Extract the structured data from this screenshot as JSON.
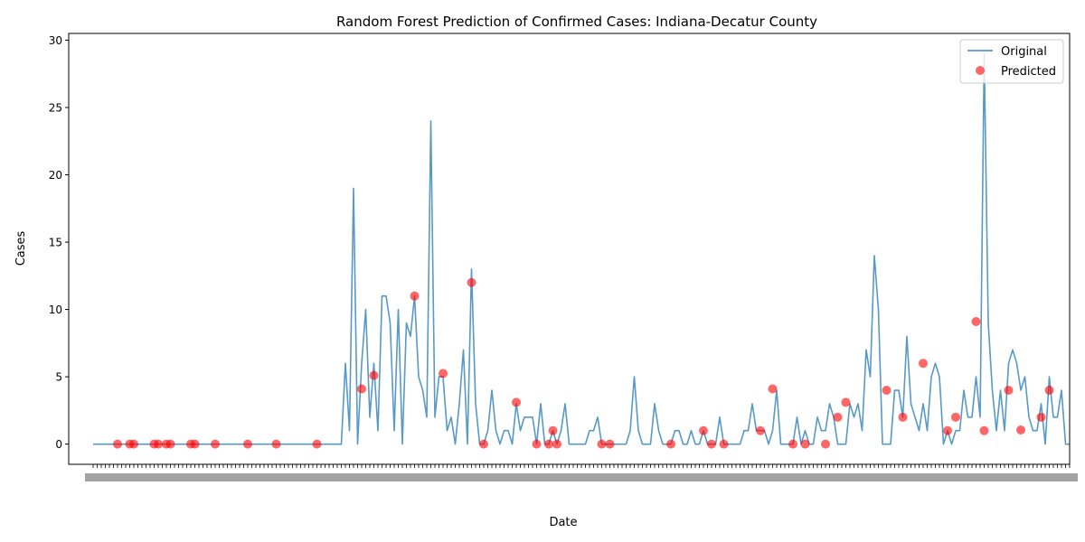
{
  "chart_data": {
    "type": "line",
    "title": "Random Forest Prediction of Confirmed Cases: Indiana-Decatur County",
    "xlabel": "Date",
    "ylabel": "Cases",
    "ylim": [
      -1.5,
      30.5
    ],
    "yticks": [
      0,
      5,
      10,
      15,
      20,
      25,
      30
    ],
    "x_tick_label_note": "dense overlapping date labels (unreadable)",
    "x_range": [
      -6,
      240
    ],
    "grid": false,
    "legend_position": "top-right",
    "series": [
      {
        "name": "Original",
        "color": "#1f77b4",
        "values": [
          0,
          0,
          0,
          0,
          0,
          0,
          0,
          0,
          0,
          0,
          0,
          0,
          0,
          0,
          0,
          0,
          0,
          0,
          0,
          0,
          0,
          0,
          0,
          0,
          0,
          0,
          0,
          0,
          0,
          0,
          0,
          0,
          0,
          0,
          0,
          0,
          0,
          0,
          0,
          0,
          0,
          0,
          0,
          0,
          0,
          0,
          0,
          0,
          0,
          0,
          0,
          0,
          0,
          0,
          0,
          0,
          0,
          0,
          0,
          0,
          0,
          0,
          6,
          1,
          19,
          0,
          6,
          10,
          2,
          6,
          1,
          11,
          11,
          9,
          1,
          10,
          0,
          9,
          8,
          11,
          5,
          4,
          2,
          24,
          2,
          5,
          5,
          1,
          2,
          0,
          3,
          7,
          0,
          13,
          3,
          0,
          0,
          1,
          4,
          1,
          0,
          1,
          1,
          0,
          3,
          1,
          2,
          2,
          2,
          0,
          3,
          0,
          0,
          1,
          0,
          1,
          3,
          0,
          0,
          0,
          0,
          0,
          1,
          1,
          2,
          0,
          0,
          0,
          0,
          0,
          0,
          0,
          1,
          5,
          1,
          0,
          0,
          0,
          3,
          1,
          0,
          0,
          0,
          1,
          1,
          0,
          0,
          1,
          0,
          0,
          1,
          0,
          0,
          0,
          2,
          0,
          0,
          0,
          0,
          0,
          1,
          1,
          3,
          1,
          1,
          1,
          0,
          1,
          4,
          0,
          0,
          0,
          0,
          2,
          0,
          1,
          0,
          0,
          2,
          1,
          1,
          3,
          2,
          0,
          0,
          0,
          3,
          2,
          3,
          1,
          7,
          5,
          14,
          10,
          0,
          0,
          0,
          4,
          4,
          2,
          8,
          3,
          2,
          1,
          3,
          1,
          5,
          6,
          5,
          0,
          1,
          0,
          1,
          1,
          4,
          2,
          2,
          5,
          2,
          29,
          9,
          4,
          1,
          4,
          1,
          6,
          7,
          6,
          4,
          5,
          2,
          1,
          1,
          3,
          0,
          5,
          2,
          2,
          4,
          0,
          0
        ]
      },
      {
        "name": "Predicted",
        "color": "#ff0000",
        "points": [
          {
            "x": 6,
            "y": 0
          },
          {
            "x": 9,
            "y": 0
          },
          {
            "x": 10,
            "y": 0
          },
          {
            "x": 15,
            "y": 0
          },
          {
            "x": 16,
            "y": 0
          },
          {
            "x": 18,
            "y": 0
          },
          {
            "x": 19,
            "y": 0
          },
          {
            "x": 24,
            "y": 0
          },
          {
            "x": 25,
            "y": 0
          },
          {
            "x": 30,
            "y": 0
          },
          {
            "x": 38,
            "y": 0
          },
          {
            "x": 45,
            "y": 0
          },
          {
            "x": 55,
            "y": 0
          },
          {
            "x": 66,
            "y": 4.1
          },
          {
            "x": 69,
            "y": 5.1
          },
          {
            "x": 79,
            "y": 11
          },
          {
            "x": 86,
            "y": 5.25
          },
          {
            "x": 93,
            "y": 12
          },
          {
            "x": 96,
            "y": 0
          },
          {
            "x": 104,
            "y": 3.1
          },
          {
            "x": 109,
            "y": 0
          },
          {
            "x": 112,
            "y": 0
          },
          {
            "x": 113,
            "y": 1
          },
          {
            "x": 114,
            "y": 0
          },
          {
            "x": 125,
            "y": 0
          },
          {
            "x": 127,
            "y": 0
          },
          {
            "x": 142,
            "y": 0
          },
          {
            "x": 150,
            "y": 1
          },
          {
            "x": 152,
            "y": 0
          },
          {
            "x": 155,
            "y": 0
          },
          {
            "x": 164,
            "y": 1
          },
          {
            "x": 167,
            "y": 4.1
          },
          {
            "x": 172,
            "y": 0
          },
          {
            "x": 175,
            "y": 0
          },
          {
            "x": 180,
            "y": 0
          },
          {
            "x": 183,
            "y": 2
          },
          {
            "x": 185,
            "y": 3.1
          },
          {
            "x": 195,
            "y": 4
          },
          {
            "x": 199,
            "y": 2
          },
          {
            "x": 204,
            "y": 6
          },
          {
            "x": 210,
            "y": 1
          },
          {
            "x": 212,
            "y": 2
          },
          {
            "x": 217,
            "y": 9.1
          },
          {
            "x": 219,
            "y": 1
          },
          {
            "x": 225,
            "y": 4
          },
          {
            "x": 228,
            "y": 1.05
          },
          {
            "x": 233,
            "y": 2
          },
          {
            "x": 235,
            "y": 4
          }
        ]
      }
    ]
  }
}
